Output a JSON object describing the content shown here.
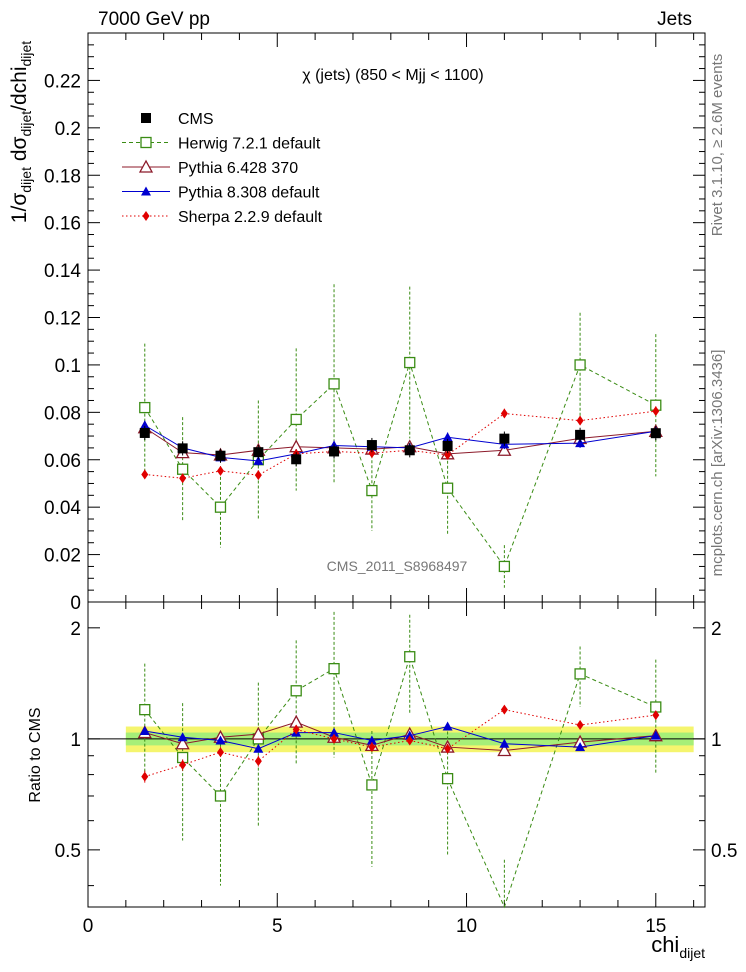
{
  "header": {
    "energy_label": "7000 GeV pp",
    "process_label": "Jets",
    "rivet_label": "Rivet 3.1.10, ≥ 2.6M events",
    "source_label": "mcplots.cern.ch [arXiv:1306.3436]",
    "analysis_label": "CMS_2011_S8968497"
  },
  "chart_data": [
    {
      "type": "line",
      "title": "χ (jets) (850 < Mjj < 1100)",
      "ylabel_parts": [
        "1/σ",
        "dijet",
        " dσ",
        "dijet",
        "/dchi",
        "dijet"
      ],
      "ylim": [
        0,
        0.24
      ],
      "xlim": [
        0,
        16.3
      ],
      "yticks": [
        0,
        0.02,
        0.04,
        0.06,
        0.08,
        0.1,
        0.12,
        0.14,
        0.16,
        0.18,
        0.2,
        0.22
      ],
      "ytick_labels": [
        "0",
        "0.02",
        "0.04",
        "0.06",
        "0.08",
        "0.1",
        "0.12",
        "0.14",
        "0.16",
        "0.18",
        "0.2",
        "0.22"
      ],
      "x": [
        1.5,
        2.5,
        3.5,
        4.5,
        5.5,
        6.5,
        7.5,
        8.5,
        9.5,
        11,
        13,
        15
      ],
      "legend_placement": "top-left",
      "series": [
        {
          "name": "CMS",
          "color": "#000000",
          "marker": "square-filled",
          "line": "none",
          "values": [
            0.0713,
            0.0648,
            0.0617,
            0.0632,
            0.0602,
            0.0635,
            0.0662,
            0.064,
            0.0658,
            0.0689,
            0.0705,
            0.0712
          ],
          "errors": [
            0.003,
            0.003,
            0.003,
            0.003,
            0.003,
            0.003,
            0.003,
            0.003,
            0.003,
            0.003,
            0.003,
            0.003
          ]
        },
        {
          "name": "Herwig 7.2.1 default",
          "color": "#3a8c14",
          "marker": "square-open",
          "line": "dashed",
          "values": [
            0.082,
            0.056,
            0.04,
            0.06,
            0.077,
            0.092,
            0.047,
            0.101,
            0.048,
            0.015,
            0.1,
            0.083
          ],
          "errors": [
            0.027,
            0.022,
            0.017,
            0.025,
            0.03,
            0.042,
            0.017,
            0.032,
            0.02,
            0.009,
            0.022,
            0.03
          ]
        },
        {
          "name": "Pythia 6.428 370",
          "color": "#8c1a2a",
          "marker": "triangle-open",
          "line": "solid",
          "values": [
            0.0735,
            0.063,
            0.062,
            0.064,
            0.0655,
            0.065,
            0.0645,
            0.0655,
            0.0625,
            0.064,
            0.069,
            0.072
          ],
          "errors": [
            0.002,
            0.002,
            0.002,
            0.002,
            0.002,
            0.002,
            0.002,
            0.002,
            0.002,
            0.002,
            0.002,
            0.002
          ]
        },
        {
          "name": "Pythia 8.308 default",
          "color": "#0000d0",
          "marker": "triangle-filled",
          "line": "solid",
          "values": [
            0.0745,
            0.065,
            0.061,
            0.0595,
            0.0625,
            0.066,
            0.0655,
            0.065,
            0.0695,
            0.0665,
            0.067,
            0.072
          ],
          "errors": [
            0.002,
            0.002,
            0.002,
            0.002,
            0.002,
            0.002,
            0.002,
            0.002,
            0.002,
            0.002,
            0.002,
            0.002
          ]
        },
        {
          "name": "Sherpa 2.2.9 default",
          "color": "#e00000",
          "marker": "diamond-filled",
          "line": "dotted",
          "values": [
            0.0538,
            0.0522,
            0.0553,
            0.0535,
            0.0625,
            0.0635,
            0.0628,
            0.064,
            0.062,
            0.0795,
            0.0765,
            0.0805
          ],
          "errors": [
            0.002,
            0.002,
            0.002,
            0.002,
            0.002,
            0.002,
            0.002,
            0.002,
            0.002,
            0.002,
            0.002,
            0.002
          ]
        }
      ]
    },
    {
      "type": "line",
      "ylabel": "Ratio to CMS",
      "xlabel": "chi",
      "xlabel_sub": "dijet",
      "ylim": [
        0.35,
        2.35
      ],
      "xlim": [
        0,
        16.3
      ],
      "xticks": [
        0,
        5,
        10,
        15
      ],
      "xtick_labels": [
        "0",
        "5",
        "10",
        "15"
      ],
      "yticks": [
        0.5,
        1,
        2
      ],
      "ytick_labels": [
        "0.5",
        "1",
        "2"
      ],
      "x": [
        1.5,
        2.5,
        3.5,
        4.5,
        5.5,
        6.5,
        7.5,
        8.5,
        9.5,
        11,
        13,
        15
      ],
      "band_outer": 0.08,
      "band_inner": 0.04,
      "band_outer_color": "#f5f56e",
      "band_inner_color": "#a6ef78",
      "series": [
        {
          "name": "Herwig 7.2.1 default",
          "color": "#3a8c14",
          "marker": "square-open",
          "line": "dashed",
          "values": [
            1.2,
            0.89,
            0.7,
            1.0,
            1.35,
            1.55,
            0.75,
            1.67,
            0.78,
            0.27,
            1.5,
            1.22
          ],
          "errors": [
            0.4,
            0.36,
            0.3,
            0.42,
            0.5,
            0.66,
            0.3,
            0.5,
            0.3,
            0.2,
            0.28,
            0.42
          ]
        },
        {
          "name": "Pythia 6.428 370",
          "color": "#8c1a2a",
          "marker": "triangle-open",
          "line": "solid",
          "values": [
            1.04,
            0.97,
            1.01,
            1.03,
            1.11,
            1.01,
            0.96,
            1.03,
            0.95,
            0.93,
            0.98,
            1.02
          ],
          "errors": [
            0.02,
            0.02,
            0.02,
            0.02,
            0.02,
            0.02,
            0.02,
            0.02,
            0.02,
            0.02,
            0.02,
            0.02
          ]
        },
        {
          "name": "Pythia 8.308 default",
          "color": "#0000d0",
          "marker": "triangle-filled",
          "line": "solid",
          "values": [
            1.05,
            1.01,
            0.99,
            0.94,
            1.04,
            1.04,
            0.99,
            1.02,
            1.08,
            0.97,
            0.95,
            1.02
          ],
          "errors": [
            0.02,
            0.02,
            0.02,
            0.02,
            0.02,
            0.02,
            0.02,
            0.02,
            0.02,
            0.02,
            0.02,
            0.02
          ]
        },
        {
          "name": "Sherpa 2.2.9 default",
          "color": "#e00000",
          "marker": "diamond-filled",
          "line": "dotted",
          "values": [
            0.79,
            0.85,
            0.92,
            0.87,
            1.06,
            1.0,
            0.95,
            0.99,
            0.94,
            1.2,
            1.09,
            1.16
          ],
          "errors": [
            0.03,
            0.03,
            0.03,
            0.03,
            0.03,
            0.03,
            0.03,
            0.03,
            0.03,
            0.03,
            0.03,
            0.03
          ]
        }
      ]
    }
  ]
}
